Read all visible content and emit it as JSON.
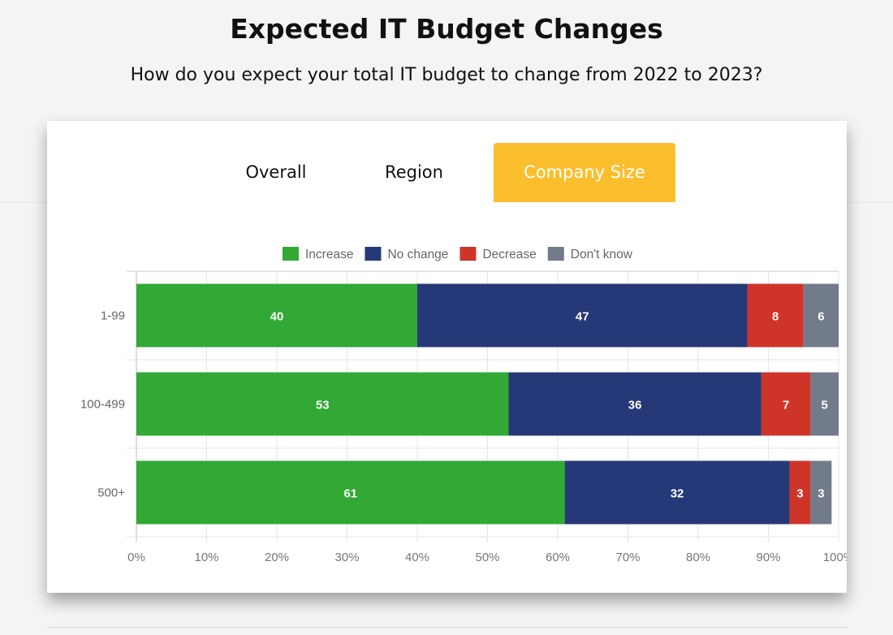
{
  "header": {
    "title": "Expected IT Budget Changes",
    "subtitle": "How do you expect your total IT budget to change from 2022 to 2023?"
  },
  "tabs": [
    {
      "label": "Overall",
      "active": false
    },
    {
      "label": "Region",
      "active": false
    },
    {
      "label": "Company Size",
      "active": true
    }
  ],
  "colors": {
    "accent": "#fbbf2e"
  },
  "chart_data": {
    "type": "bar",
    "orientation": "horizontal",
    "stacked": true,
    "categories": [
      "1-99",
      "100-499",
      "500+"
    ],
    "series": [
      {
        "name": "Increase",
        "color": "#31a934",
        "values": [
          40,
          53,
          61
        ]
      },
      {
        "name": "No change",
        "color": "#253877",
        "values": [
          47,
          36,
          32
        ]
      },
      {
        "name": "Decrease",
        "color": "#cf3429",
        "values": [
          8,
          7,
          3
        ]
      },
      {
        "name": "Don't know",
        "color": "#727b8a",
        "values": [
          6,
          5,
          3
        ]
      }
    ],
    "xlim": [
      0,
      100
    ],
    "xticks": [
      "0%",
      "10%",
      "20%",
      "30%",
      "40%",
      "50%",
      "60%",
      "70%",
      "80%",
      "90%",
      "100%"
    ],
    "legend": "top",
    "grid": true,
    "data_labels": true
  }
}
